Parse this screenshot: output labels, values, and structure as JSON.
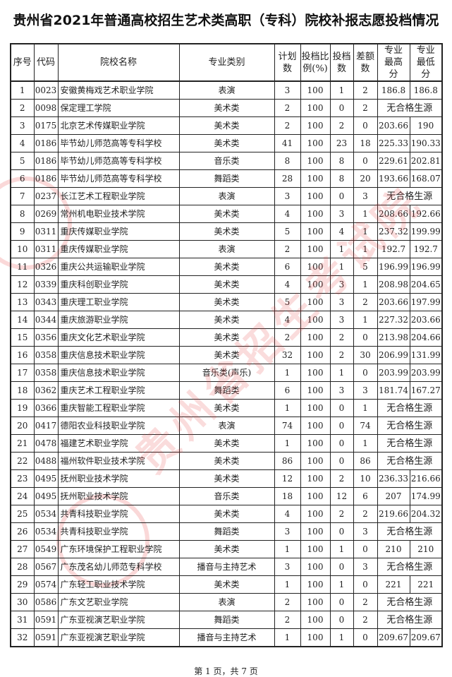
{
  "title": "贵州省2021年普通高校招生艺术类高职（专科）院校补报志愿投档情况",
  "columns": [
    "序号",
    "代码",
    "院校名称",
    "专业类别",
    "计划数",
    "投档比例(%)",
    "投档数",
    "差额数",
    "专业最高分",
    "专业最低分"
  ],
  "no_source_label": "无合格生源",
  "rows": [
    [
      "1",
      "0023",
      "安徽黄梅戏艺术职业学院",
      "表演",
      "3",
      "100",
      "1",
      "2",
      "186.8",
      "186.8"
    ],
    [
      "2",
      "0098",
      "保定理工学院",
      "美术类",
      "2",
      "100",
      "0",
      "2",
      null,
      null
    ],
    [
      "3",
      "0175",
      "北京艺术传媒职业学院",
      "美术类",
      "2",
      "100",
      "2",
      "0",
      "203.66",
      "190"
    ],
    [
      "4",
      "0186",
      "毕节幼儿师范高等专科学校",
      "美术类",
      "41",
      "100",
      "23",
      "18",
      "225.33",
      "190.33"
    ],
    [
      "5",
      "0186",
      "毕节幼儿师范高等专科学校",
      "音乐类",
      "8",
      "100",
      "8",
      "0",
      "229.61",
      "202.81"
    ],
    [
      "6",
      "0186",
      "毕节幼儿师范高等专科学校",
      "舞蹈类",
      "28",
      "100",
      "8",
      "20",
      "193.66",
      "168.07"
    ],
    [
      "7",
      "0237",
      "长江艺术工程职业学院",
      "表演",
      "3",
      "100",
      "0",
      "3",
      null,
      null
    ],
    [
      "8",
      "0269",
      "常州机电职业技术学院",
      "美术类",
      "4",
      "100",
      "3",
      "1",
      "208.66",
      "192.66"
    ],
    [
      "9",
      "0311",
      "重庆传媒职业学院",
      "美术类",
      "5",
      "100",
      "4",
      "1",
      "237.32",
      "199.99"
    ],
    [
      "10",
      "0311",
      "重庆传媒职业学院",
      "表演",
      "2",
      "100",
      "1",
      "1",
      "192.7",
      "192.7"
    ],
    [
      "11",
      "0326",
      "重庆公共运输职业学院",
      "美术类",
      "6",
      "100",
      "1",
      "5",
      "196.99",
      "196.99"
    ],
    [
      "12",
      "0339",
      "重庆科创职业学院",
      "美术类",
      "4",
      "100",
      "3",
      "1",
      "208.98",
      "204.65"
    ],
    [
      "13",
      "0343",
      "重庆理工职业学院",
      "美术类",
      "5",
      "100",
      "3",
      "2",
      "203.66",
      "197.99"
    ],
    [
      "14",
      "0344",
      "重庆旅游职业学院",
      "美术类",
      "4",
      "100",
      "3",
      "1",
      "227.32",
      "203.66"
    ],
    [
      "15",
      "0356",
      "重庆文化艺术职业学院",
      "美术类",
      "2",
      "100",
      "2",
      "0",
      "213.98",
      "204.66"
    ],
    [
      "16",
      "0358",
      "重庆信息技术职业学院",
      "美术类",
      "32",
      "100",
      "2",
      "30",
      "206.99",
      "131.99"
    ],
    [
      "17",
      "0358",
      "重庆信息技术职业学院",
      "音乐类(声乐)",
      "1",
      "100",
      "1",
      "0",
      "203.99",
      "203.99"
    ],
    [
      "18",
      "0362",
      "重庆艺术工程职业学院",
      "舞蹈类",
      "6",
      "100",
      "3",
      "3",
      "181.74",
      "167.27"
    ],
    [
      "19",
      "0366",
      "重庆智能工程职业学院",
      "美术类",
      "1",
      "100",
      "0",
      "1",
      null,
      null
    ],
    [
      "20",
      "0417",
      "德阳农业科技职业学院",
      "表演",
      "74",
      "100",
      "0",
      "74",
      null,
      null
    ],
    [
      "21",
      "0478",
      "福建艺术职业学院",
      "美术类",
      "1",
      "100",
      "0",
      "1",
      null,
      null
    ],
    [
      "22",
      "0488",
      "福州软件职业技术学院",
      "美术类",
      "86",
      "100",
      "0",
      "86",
      null,
      null
    ],
    [
      "23",
      "0495",
      "抚州职业技术学院",
      "美术类",
      "12",
      "100",
      "2",
      "10",
      "236.33",
      "216.66"
    ],
    [
      "24",
      "0495",
      "抚州职业技术学院",
      "音乐类",
      "18",
      "100",
      "12",
      "6",
      "207",
      "174.99"
    ],
    [
      "25",
      "0534",
      "共青科技职业学院",
      "美术类",
      "4",
      "100",
      "2",
      "2",
      "219.66",
      "204.32"
    ],
    [
      "26",
      "0534",
      "共青科技职业学院",
      "舞蹈类",
      "3",
      "100",
      "0",
      "3",
      null,
      null
    ],
    [
      "27",
      "0549",
      "广东环境保护工程职业学院",
      "美术类",
      "1",
      "100",
      "1",
      "0",
      "210",
      "210"
    ],
    [
      "28",
      "0567",
      "广东茂名幼儿师范专科学校",
      "播音与主持艺术",
      "3",
      "100",
      "0",
      "3",
      null,
      null
    ],
    [
      "29",
      "0574",
      "广东轻工职业技术学院",
      "美术类",
      "1",
      "100",
      "1",
      "0",
      "221",
      "221"
    ],
    [
      "30",
      "0586",
      "广东文艺职业学院",
      "表演",
      "2",
      "100",
      "0",
      "2",
      null,
      null
    ],
    [
      "31",
      "0591",
      "广东亚视演艺职业学院",
      "舞蹈类",
      "2",
      "100",
      "0",
      "2",
      null,
      null
    ],
    [
      "32",
      "0591",
      "广东亚视演艺职业学院",
      "播音与主持艺术",
      "1",
      "100",
      "1",
      "0",
      "209.67",
      "209.67"
    ]
  ],
  "footer": "第 1 页，共 7 页",
  "watermark": "贵州省招生考试院",
  "colors": {
    "watermark": "#e63c3c",
    "text": "#222222"
  }
}
